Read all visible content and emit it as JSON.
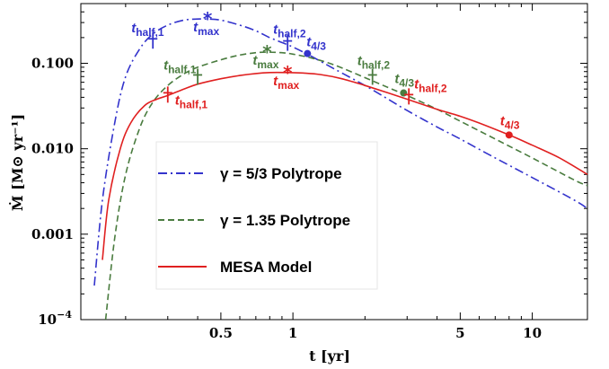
{
  "chart_data": {
    "type": "line",
    "title": "",
    "xlabel": "t [yr]",
    "ylabel": "Ṁ [M⊙ yr⁻¹]",
    "xscale": "log",
    "yscale": "log",
    "xlim": [
      0.13,
      17
    ],
    "ylim": [
      0.0001,
      0.5
    ],
    "x_ticks": [
      {
        "value": 0.5,
        "label": "0.5"
      },
      {
        "value": 1,
        "label": "1"
      },
      {
        "value": 5,
        "label": "5"
      },
      {
        "value": 10,
        "label": "10"
      }
    ],
    "y_ticks": [
      {
        "value": 0.0001,
        "label": "10",
        "sup": "−4"
      },
      {
        "value": 0.001,
        "label": "0.001",
        "sup": ""
      },
      {
        "value": 0.01,
        "label": "0.010",
        "sup": ""
      },
      {
        "value": 0.1,
        "label": "0.100",
        "sup": ""
      }
    ],
    "legend": {
      "position": "lower-left",
      "entries": [
        {
          "label": "γ = 5/3 Polytrope",
          "color": "#3333cc",
          "dash": "dash-dot"
        },
        {
          "label": "γ = 1.35 Polytrope",
          "color": "#4a7c3f",
          "dash": "dashed"
        },
        {
          "label": "MESA Model",
          "color": "#e02020",
          "dash": "solid"
        }
      ]
    },
    "series": [
      {
        "color": "#3333cc",
        "dash": "dash-dot",
        "x": [
          0.148,
          0.16,
          0.18,
          0.2,
          0.23,
          0.26,
          0.3,
          0.35,
          0.4,
          0.44,
          0.5,
          0.6,
          0.7,
          0.8,
          0.9,
          1.0,
          1.2,
          1.5,
          2.0,
          2.5,
          3.0,
          4.0,
          5.0,
          7.0,
          10.0,
          15.0,
          17.0
        ],
        "y": [
          0.00025,
          0.0025,
          0.02,
          0.07,
          0.15,
          0.22,
          0.28,
          0.32,
          0.33,
          0.33,
          0.32,
          0.28,
          0.24,
          0.2,
          0.175,
          0.155,
          0.12,
          0.085,
          0.055,
          0.038,
          0.028,
          0.018,
          0.013,
          0.0078,
          0.0046,
          0.0025,
          0.002
        ]
      },
      {
        "color": "#4a7c3f",
        "dash": "dashed",
        "x": [
          0.165,
          0.18,
          0.2,
          0.23,
          0.26,
          0.3,
          0.35,
          0.4,
          0.5,
          0.6,
          0.7,
          0.78,
          0.9,
          1.0,
          1.2,
          1.5,
          2.0,
          2.5,
          3.0,
          4.0,
          5.0,
          7.0,
          10.0,
          15.0,
          17.0
        ],
        "y": [
          0.0001,
          0.0009,
          0.005,
          0.018,
          0.035,
          0.055,
          0.075,
          0.09,
          0.11,
          0.125,
          0.133,
          0.135,
          0.133,
          0.128,
          0.115,
          0.095,
          0.068,
          0.052,
          0.042,
          0.029,
          0.021,
          0.013,
          0.0078,
          0.0043,
          0.0037
        ]
      },
      {
        "color": "#e02020",
        "dash": "solid",
        "x": [
          0.16,
          0.17,
          0.19,
          0.21,
          0.24,
          0.27,
          0.3,
          0.35,
          0.4,
          0.5,
          0.6,
          0.7,
          0.8,
          0.95,
          1.1,
          1.3,
          1.6,
          2.0,
          2.5,
          3.0,
          4.0,
          5.0,
          6.0,
          8.0,
          10.0,
          13.0,
          17.0
        ],
        "y": [
          0.0005,
          0.0025,
          0.01,
          0.02,
          0.032,
          0.038,
          0.042,
          0.05,
          0.057,
          0.066,
          0.072,
          0.076,
          0.078,
          0.078,
          0.077,
          0.074,
          0.066,
          0.055,
          0.045,
          0.038,
          0.029,
          0.024,
          0.02,
          0.0145,
          0.011,
          0.0078,
          0.005
        ]
      }
    ],
    "annotations": [
      {
        "text": "t",
        "sub": "half,1",
        "marker": "dagger",
        "color": "#3333cc",
        "x": 0.26,
        "y": 0.18,
        "label_dx": -24,
        "label_dy": -10
      },
      {
        "text": "t",
        "sub": "max",
        "marker": "star",
        "color": "#3333cc",
        "x": 0.44,
        "y": 0.33,
        "label_dx": -16,
        "label_dy": 14
      },
      {
        "text": "t",
        "sub": "half,2",
        "marker": "dagger",
        "color": "#3333cc",
        "x": 0.95,
        "y": 0.17,
        "label_dx": -16,
        "label_dy": -11
      },
      {
        "text": "t",
        "sub": "4/3",
        "marker": "dot",
        "color": "#3333cc",
        "x": 1.15,
        "y": 0.13,
        "label_dx": -1,
        "label_dy": -8
      },
      {
        "text": "t",
        "sub": "half,1",
        "marker": "dagger",
        "color": "#4a7c3f",
        "x": 0.4,
        "y": 0.068,
        "label_dx": -38,
        "label_dy": -9
      },
      {
        "text": "t",
        "sub": "max",
        "marker": "star",
        "color": "#4a7c3f",
        "x": 0.78,
        "y": 0.135,
        "label_dx": -16,
        "label_dy": 14
      },
      {
        "text": "t",
        "sub": "half,2",
        "marker": "dagger",
        "color": "#4a7c3f",
        "x": 2.15,
        "y": 0.068,
        "label_dx": -17,
        "label_dy": -14
      },
      {
        "text": "t",
        "sub": "4/3",
        "marker": "dot",
        "color": "#4a7c3f",
        "x": 2.9,
        "y": 0.045,
        "label_dx": -10,
        "label_dy": -11
      },
      {
        "text": "t",
        "sub": "half,1",
        "marker": "dagger",
        "color": "#e02020",
        "x": 0.3,
        "y": 0.042,
        "label_dx": 8,
        "label_dy": 10
      },
      {
        "text": "t",
        "sub": "max",
        "marker": "star",
        "color": "#e02020",
        "x": 0.95,
        "y": 0.078,
        "label_dx": -16,
        "label_dy": 14
      },
      {
        "text": "t",
        "sub": "half,2",
        "marker": "dagger",
        "color": "#e02020",
        "x": 3.05,
        "y": 0.04,
        "label_dx": 6,
        "label_dy": -10
      },
      {
        "text": "t",
        "sub": "4/3",
        "marker": "dot",
        "color": "#e02020",
        "x": 8.0,
        "y": 0.0145,
        "label_dx": -10,
        "label_dy": -11
      }
    ]
  }
}
